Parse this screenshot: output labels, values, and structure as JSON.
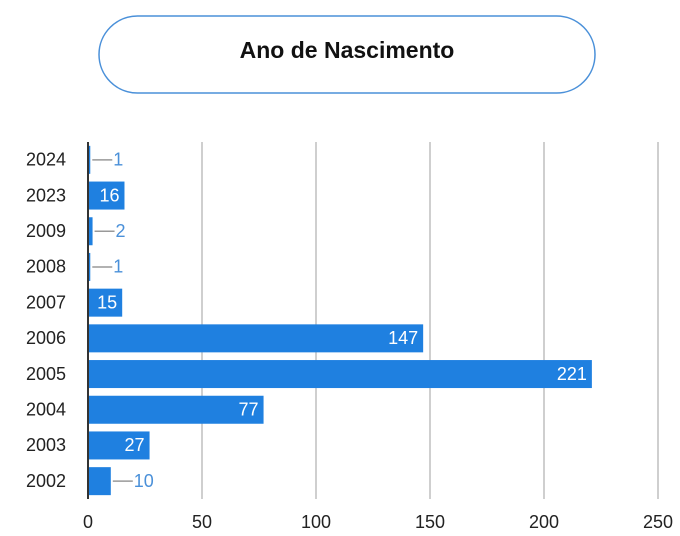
{
  "chart_data": {
    "type": "bar",
    "orientation": "horizontal",
    "title": "Ano de Nascimento",
    "categories": [
      "2024",
      "2023",
      "2009",
      "2008",
      "2007",
      "2006",
      "2005",
      "2004",
      "2003",
      "2002"
    ],
    "values": [
      1,
      16,
      2,
      1,
      15,
      147,
      221,
      77,
      27,
      10
    ],
    "color": "#1f80e0",
    "xlim": [
      0,
      250
    ],
    "xticks": [
      0,
      50,
      100,
      150,
      200,
      250
    ],
    "grid": true
  }
}
